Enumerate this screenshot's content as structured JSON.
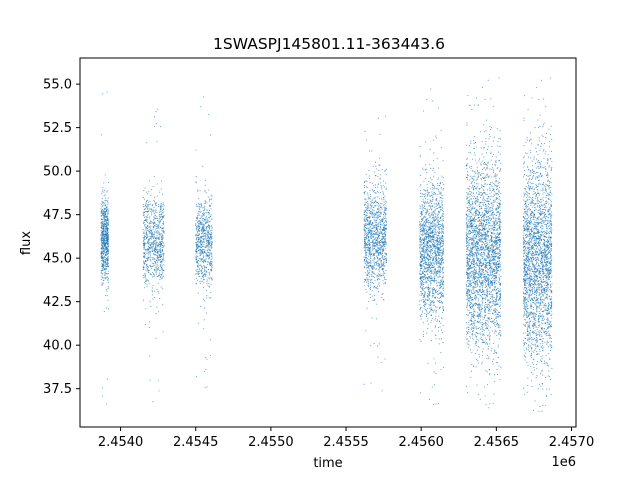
{
  "chart_data": {
    "type": "scatter",
    "title": "1SWASPJ145801.11-363443.6",
    "xlabel": "time",
    "ylabel": "flux",
    "x_offset_label": "1e6",
    "xlim": [
      2453730,
      2457030
    ],
    "ylim": [
      35.3,
      56.5
    ],
    "xticks": [
      2454000,
      2454500,
      2455000,
      2455500,
      2456000,
      2456500,
      2457000
    ],
    "xtick_labels": [
      "2.4540",
      "2.4545",
      "2.4550",
      "2.4555",
      "2.4560",
      "2.4565",
      "2.4570"
    ],
    "yticks": [
      37.5,
      40.0,
      42.5,
      45.0,
      47.5,
      50.0,
      52.5,
      55.0
    ],
    "ytick_labels": [
      "37.5",
      "40.0",
      "42.5",
      "45.0",
      "47.5",
      "50.0",
      "52.5",
      "55.0"
    ],
    "grid": false,
    "marker_color": "#1f77b4",
    "segments": [
      {
        "start": 2453870,
        "end": 2453920,
        "center": 46.0,
        "spread": 1.2,
        "count": 700,
        "ymin": 36.4,
        "ymax": 55.0
      },
      {
        "start": 2454150,
        "end": 2454290,
        "center": 45.9,
        "spread": 1.3,
        "count": 800,
        "ymin": 36.7,
        "ymax": 54.3
      },
      {
        "start": 2454500,
        "end": 2454610,
        "center": 45.9,
        "spread": 1.2,
        "count": 700,
        "ymin": 37.3,
        "ymax": 54.8
      },
      {
        "start": 2455620,
        "end": 2455770,
        "center": 46.2,
        "spread": 1.5,
        "count": 1100,
        "ymin": 36.6,
        "ymax": 53.2
      },
      {
        "start": 2455990,
        "end": 2456150,
        "center": 45.4,
        "spread": 1.9,
        "count": 1600,
        "ymin": 36.3,
        "ymax": 55.3
      },
      {
        "start": 2456300,
        "end": 2456530,
        "center": 45.2,
        "spread": 2.6,
        "count": 2800,
        "ymin": 36.3,
        "ymax": 55.4
      },
      {
        "start": 2456680,
        "end": 2456870,
        "center": 44.9,
        "spread": 2.8,
        "count": 2400,
        "ymin": 36.2,
        "ymax": 55.4
      }
    ]
  }
}
